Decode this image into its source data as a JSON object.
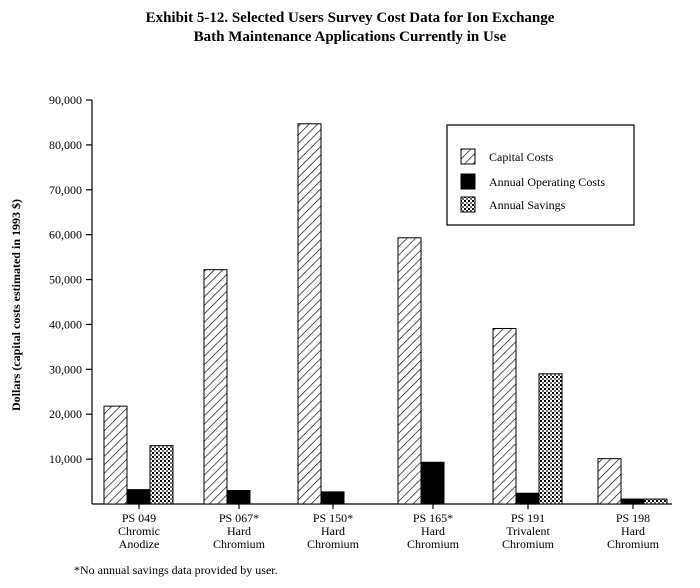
{
  "chart_data": {
    "type": "bar",
    "title_lines": [
      "Exhibit 5-12. Selected Users Survey Cost Data for Ion Exchange",
      "Bath Maintenance Applications Currently in Use"
    ],
    "ylabel": "Dollars (capital costs estimated in 1993 $)",
    "xlabel": "",
    "ylim": [
      0,
      90000
    ],
    "y_ticks": [
      "10,000",
      "20,000",
      "30,000",
      "40,000",
      "50,000",
      "60,000",
      "70,000",
      "80,000",
      "90,000"
    ],
    "categories": [
      [
        "PS 049",
        "Chromic",
        "Anodize"
      ],
      [
        "PS 067*",
        "Hard",
        "Chromium"
      ],
      [
        "PS 150*",
        "Hard",
        "Chromium"
      ],
      [
        "PS 165*",
        "Hard",
        "Chromium"
      ],
      [
        "PS 191",
        "Trivalent",
        "Chromium"
      ],
      [
        "PS 198",
        "Hard",
        "Chromium"
      ]
    ],
    "series": [
      {
        "name": "Capital Costs",
        "pattern": "diagonal-hatch",
        "values": [
          21800,
          52200,
          84700,
          59300,
          39100,
          10100
        ]
      },
      {
        "name": "Annual Operating Costs",
        "pattern": "solid-black",
        "values": [
          3200,
          3000,
          2700,
          9300,
          2400,
          1100
        ]
      },
      {
        "name": "Annual Savings",
        "pattern": "dotted-hatch",
        "values": [
          13000,
          null,
          null,
          null,
          29000,
          1100
        ]
      }
    ],
    "legend": "upper-right",
    "grid": false,
    "footnote": "*No annual savings data provided by user."
  }
}
